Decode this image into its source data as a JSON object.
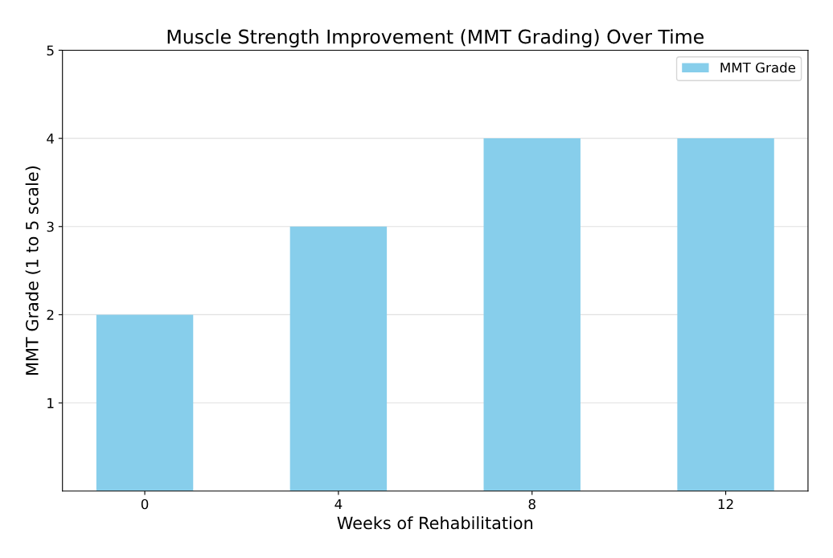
{
  "chart_data": {
    "type": "bar",
    "title": "Muscle Strength Improvement (MMT Grading) Over Time",
    "xlabel": "Weeks of Rehabilitation",
    "ylabel": "MMT Grade (1 to 5 scale)",
    "categories": [
      "0",
      "4",
      "8",
      "12"
    ],
    "series": [
      {
        "name": "MMT Grade",
        "color": "#87ceeb",
        "values": [
          2,
          3,
          4,
          4
        ]
      }
    ],
    "ylim": [
      0,
      5
    ],
    "yticks": [
      1,
      2,
      3,
      4,
      5
    ],
    "grid": "y",
    "legend": "top right"
  }
}
